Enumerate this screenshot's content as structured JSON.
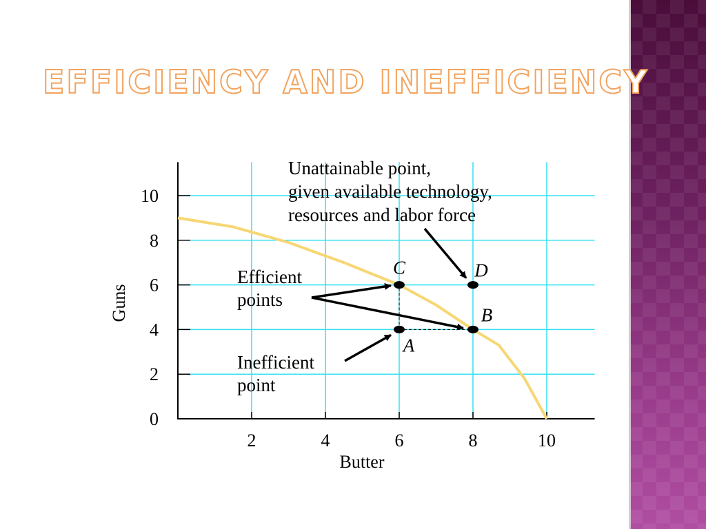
{
  "slide": {
    "title": "EFFICIENCY AND INEFFICIENCY"
  },
  "colors": {
    "curve": "#f7d774",
    "grid": "#33e0f0",
    "title_fill": "#ffffff",
    "title_outline": "#f2a35e",
    "sidebar": "#6d2160"
  },
  "chart_data": {
    "type": "line",
    "title": "",
    "xlabel": "Butter",
    "ylabel": "Guns",
    "xlim": [
      0,
      11.3
    ],
    "ylim": [
      0,
      11.5
    ],
    "x_ticks": [
      2,
      4,
      6,
      8,
      10
    ],
    "y_ticks": [
      0,
      2,
      4,
      6,
      8,
      10
    ],
    "grid": true,
    "series": [
      {
        "x": [
          0,
          1.5,
          3,
          4.5,
          6,
          7,
          8,
          8.7,
          9.4,
          10
        ],
        "y": [
          9.0,
          8.6,
          7.9,
          7.0,
          6.0,
          5.1,
          4.0,
          3.3,
          1.8,
          0
        ]
      }
    ],
    "points": [
      {
        "label": "A",
        "x": 6,
        "y": 4
      },
      {
        "label": "B",
        "x": 8,
        "y": 4
      },
      {
        "label": "C",
        "x": 6,
        "y": 6
      },
      {
        "label": "D",
        "x": 8,
        "y": 6
      }
    ],
    "annotations": [
      {
        "id": "unattainable",
        "lines": [
          "Unattainable point,",
          "given available technology,",
          "resources and labor force"
        ],
        "target": "D"
      },
      {
        "id": "efficient",
        "lines": [
          "Efficient",
          "points"
        ],
        "targets": [
          "C",
          "B"
        ]
      },
      {
        "id": "inefficient",
        "lines": [
          "Inefficient",
          "point"
        ],
        "target": "A"
      }
    ]
  }
}
